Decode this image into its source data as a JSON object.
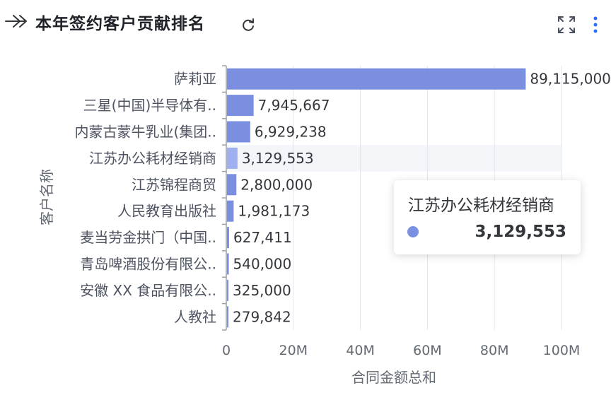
{
  "header": {
    "title": "本年签约客户贡献排名"
  },
  "colors": {
    "bar": "#7b8fe1",
    "bar_highlight": "#9fb0f0",
    "grid": "#e3e6ed",
    "axis": "#9aa0ab",
    "hover_band": "#f3f5f9"
  },
  "icons": [
    "double-arrow-right-icon",
    "refresh-icon",
    "fullscreen-icon",
    "more-vertical-icon"
  ],
  "chart_data": {
    "type": "bar",
    "orientation": "horizontal",
    "categories": [
      "萨莉亚",
      "三星(中国)半导体有..",
      "内蒙古蒙牛乳业(集团..",
      "江苏办公耗材经销商",
      "江苏锦程商贸",
      "人民教育出版社",
      "麦当劳金拱门（中国..",
      "青岛啤酒股份有限公..",
      "安徽 XX 食品有限公..",
      "人教社"
    ],
    "values": [
      89115000,
      7945667,
      6929238,
      3129553,
      2800000,
      1981173,
      627411,
      540000,
      325000,
      279842
    ],
    "value_labels": [
      "89,115,000",
      "7,945,667",
      "6,929,238",
      "3,129,553",
      "2,800,000",
      "1,981,173",
      "627,411",
      "540,000",
      "325,000",
      "279,842"
    ],
    "xlabel": "合同金额总和",
    "ylabel": "客户名称",
    "xlim": [
      0,
      100000000
    ],
    "xticks": [
      0,
      20000000,
      40000000,
      60000000,
      80000000,
      100000000
    ],
    "xtick_labels": [
      "0",
      "20M",
      "40M",
      "60M",
      "80M",
      "100M"
    ],
    "grid": true,
    "highlighted_index": 3
  },
  "tooltip": {
    "title": "江苏办公耗材经销商",
    "value": "3,129,553"
  }
}
